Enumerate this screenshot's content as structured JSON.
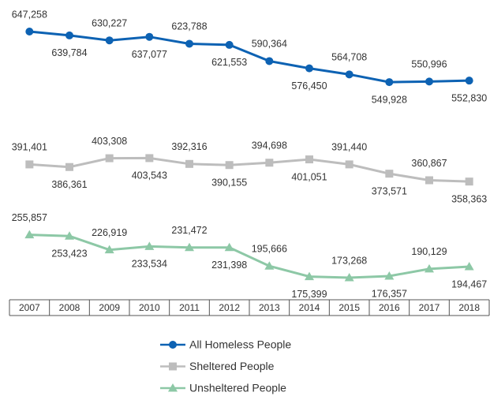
{
  "chart_data": {
    "type": "line",
    "categories": [
      "2007",
      "2008",
      "2009",
      "2010",
      "2011",
      "2012",
      "2013",
      "2014",
      "2015",
      "2016",
      "2017",
      "2018"
    ],
    "series": [
      {
        "name": "All Homeless People",
        "color": "#0d62b3",
        "marker": "circle",
        "values": [
          647258,
          639784,
          630227,
          637077,
          623788,
          621553,
          590364,
          576450,
          564708,
          549928,
          550996,
          552830
        ],
        "value_labels": [
          "647,258",
          "639,784",
          "630,227",
          "637,077",
          "623,788",
          "621,553",
          "590,364",
          "576,450",
          "564,708",
          "549,928",
          "550,996",
          "552,830"
        ]
      },
      {
        "name": "Sheltered People",
        "color": "#bdbdbd",
        "marker": "square",
        "values": [
          391401,
          386361,
          403308,
          403543,
          392316,
          390155,
          394698,
          401051,
          391440,
          373571,
          360867,
          358363
        ],
        "value_labels": [
          "391,401",
          "386,361",
          "403,308",
          "403,543",
          "392,316",
          "390,155",
          "394,698",
          "401,051",
          "391,440",
          "373,571",
          "360,867",
          "358,363"
        ]
      },
      {
        "name": "Unsheltered People",
        "color": "#8dc8a6",
        "marker": "triangle",
        "values": [
          255857,
          253423,
          226919,
          233534,
          231472,
          231398,
          195666,
          175399,
          173268,
          176357,
          190129,
          194467
        ],
        "value_labels": [
          "255,857",
          "253,423",
          "226,919",
          "233,534",
          "231,472",
          "231,398",
          "195,666",
          "175,399",
          "173,268",
          "176,357",
          "190,129",
          "194,467"
        ]
      }
    ]
  }
}
